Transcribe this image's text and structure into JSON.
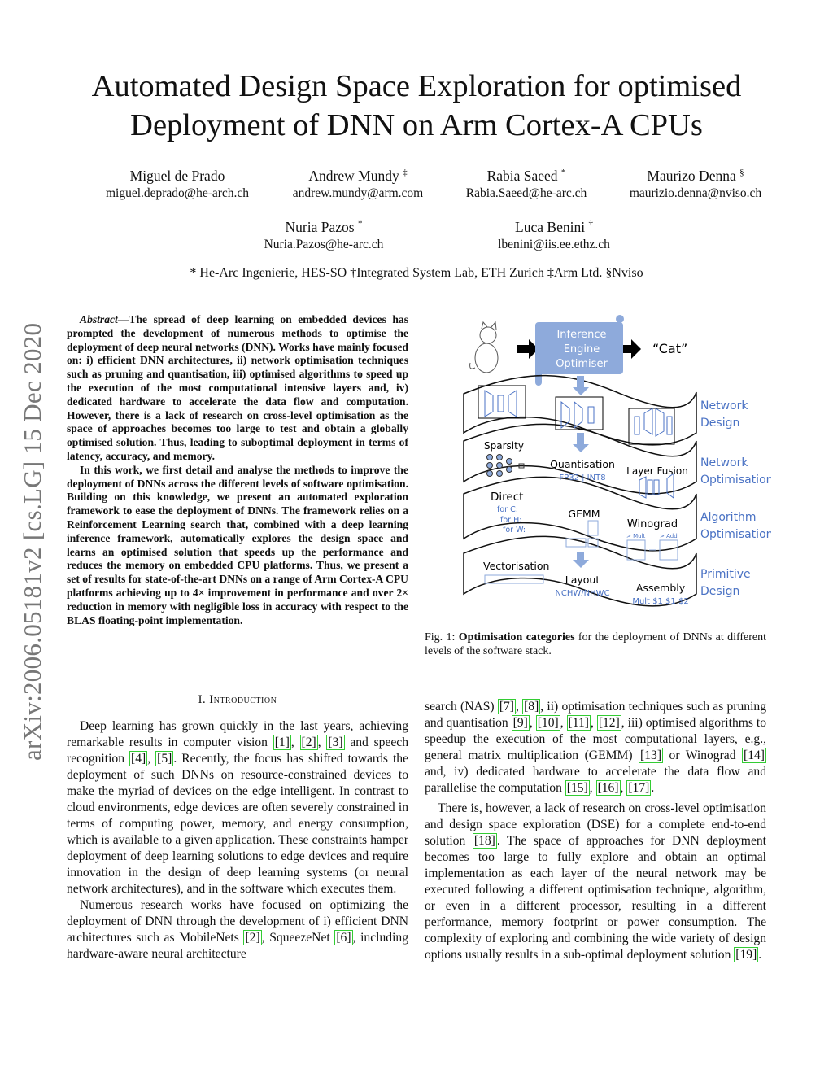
{
  "title": [
    "Automated Design Space Exploration for optimised",
    "Deployment of DNN on Arm Cortex-A CPUs"
  ],
  "authors": [
    {
      "name": "Miguel de Prado",
      "mark": "",
      "email": "miguel.deprado@he-arch.ch"
    },
    {
      "name": "Andrew Mundy",
      "mark": "‡",
      "email": "andrew.mundy@arm.com"
    },
    {
      "name": "Rabia Saeed",
      "mark": "*",
      "email": "Rabia.Saeed@he-arc.ch"
    },
    {
      "name": "Maurizo Denna",
      "mark": "§",
      "email": "maurizio.denna@nviso.ch"
    },
    {
      "name": "Nuria Pazos",
      "mark": "*",
      "email": "Nuria.Pazos@he-arc.ch"
    },
    {
      "name": "Luca Benini",
      "mark": "†",
      "email": "lbenini@iis.ee.ethz.ch"
    }
  ],
  "affiliations": "* He-Arc Ingenierie, HES-SO †Integrated System Lab, ETH Zurich ‡Arm Ltd. §Nviso",
  "arxiv_stamp": "arXiv:2006.05181v2  [cs.LG]  15 Dec 2020",
  "abstract": {
    "label": "Abstract",
    "p1": "—The spread of deep learning on embedded devices has prompted the development of numerous methods to optimise the deployment of deep neural networks (DNN). Works have mainly focused on: i) efficient DNN architectures, ii) network optimisation techniques such as pruning and quantisation, iii) optimised algorithms to speed up the execution of the most computational intensive layers and, iv) dedicated hardware to accelerate the data flow and computation. However, there is a lack of research on cross-level optimisation as the space of approaches becomes too large to test and obtain a globally optimised solution. Thus, leading to suboptimal deployment in terms of latency, accuracy, and memory.",
    "p2": "In this work, we first detail and analyse the methods to improve the deployment of DNNs across the different levels of software optimisation. Building on this knowledge, we present an automated exploration framework to ease the deployment of DNNs. The framework relies on a Reinforcement Learning search that, combined with a deep learning inference framework, automatically explores the design space and learns an optimised solution that speeds up the performance and reduces the memory on embedded CPU platforms. Thus, we present a set of results for state-of-the-art DNNs on a range of Arm Cortex-A CPU platforms achieving up to 4× improvement in performance and over 2× reduction in memory with negligible loss in accuracy with respect to the BLAS floating-point implementation."
  },
  "section": {
    "number": "I.",
    "title": "Introduction"
  },
  "intro": {
    "p1": "Deep learning has grown quickly in the last years, achieving remarkable results in computer vision [1], [2], [3] and speech recognition [4], [5]. Recently, the focus has shifted towards the deployment of such DNNs on resource-constrained devices to make the myriad of devices on the edge intelligent. In contrast to cloud environments, edge devices are often severely constrained in terms of computing power, memory, and energy consumption, which is available to a given application. These constraints hamper deployment of deep learning solutions to edge devices and require innovation in the design of deep learning systems (or neural network architectures), and in the software which executes them.",
    "p2": "Numerous research works have focused on optimizing the deployment of DNN through the development of i) efficient DNN architectures such as MobileNets [2], SqueezeNet [6], including hardware-aware neural architecture",
    "p3": "search (NAS) [7], [8], ii) optimisation techniques such as pruning and quantisation [9], [10], [11], [12], iii) optimised algorithms to speedup the execution of the most computational layers, e.g., general matrix multiplication (GEMM) [13] or Winograd [14] and, iv) dedicated hardware to accelerate the data flow and parallelise the computation [15], [16], [17].",
    "p4": "There is, however, a lack of research on cross-level optimisation and design space exploration (DSE) for a complete end-to-end solution [18]. The space of approaches for DNN deployment becomes too large to fully explore and obtain an optimal implementation as each layer of the neural network may be executed following a different optimisation technique, algorithm, or even in a different processor, resulting in a different performance, memory footprint or power consumption. The complexity of exploring and combining the wide variety of design options usually results in a sub-optimal deployment solution [19]."
  },
  "figure": {
    "engine": [
      "Inference",
      "Engine",
      "Optimiser"
    ],
    "output": "“Cat”",
    "levels": [
      [
        "Network",
        "Design"
      ],
      [
        "Network",
        "Optimisation"
      ],
      [
        "Algorithm",
        "Optimisation"
      ],
      [
        "Primitive",
        "Design"
      ]
    ],
    "sparsity": "Sparsity",
    "quantisation": "Quantisation",
    "quant_types": "FP32 | INT8",
    "layer_fusion": "Layer Fusion",
    "direct": "Direct",
    "loops": [
      "for C:",
      "for H:",
      "for W:"
    ],
    "gemm": "GEMM",
    "winograd": "Winograd",
    "mult": "> Mult",
    "add": "> Add",
    "vectorisation": "Vectorisation",
    "layout": "Layout",
    "layout_types": "NCHW/NHWC",
    "assembly": "Assembly",
    "asm_code": "Mult $1 $1 $2",
    "accent": "#4a72c4",
    "engine_color": "#8eaadb",
    "caption_label": "Fig. 1:",
    "caption_bold": "Optimisation categories",
    "caption_rest": " for the deployment of DNNs at different levels of the software stack."
  }
}
